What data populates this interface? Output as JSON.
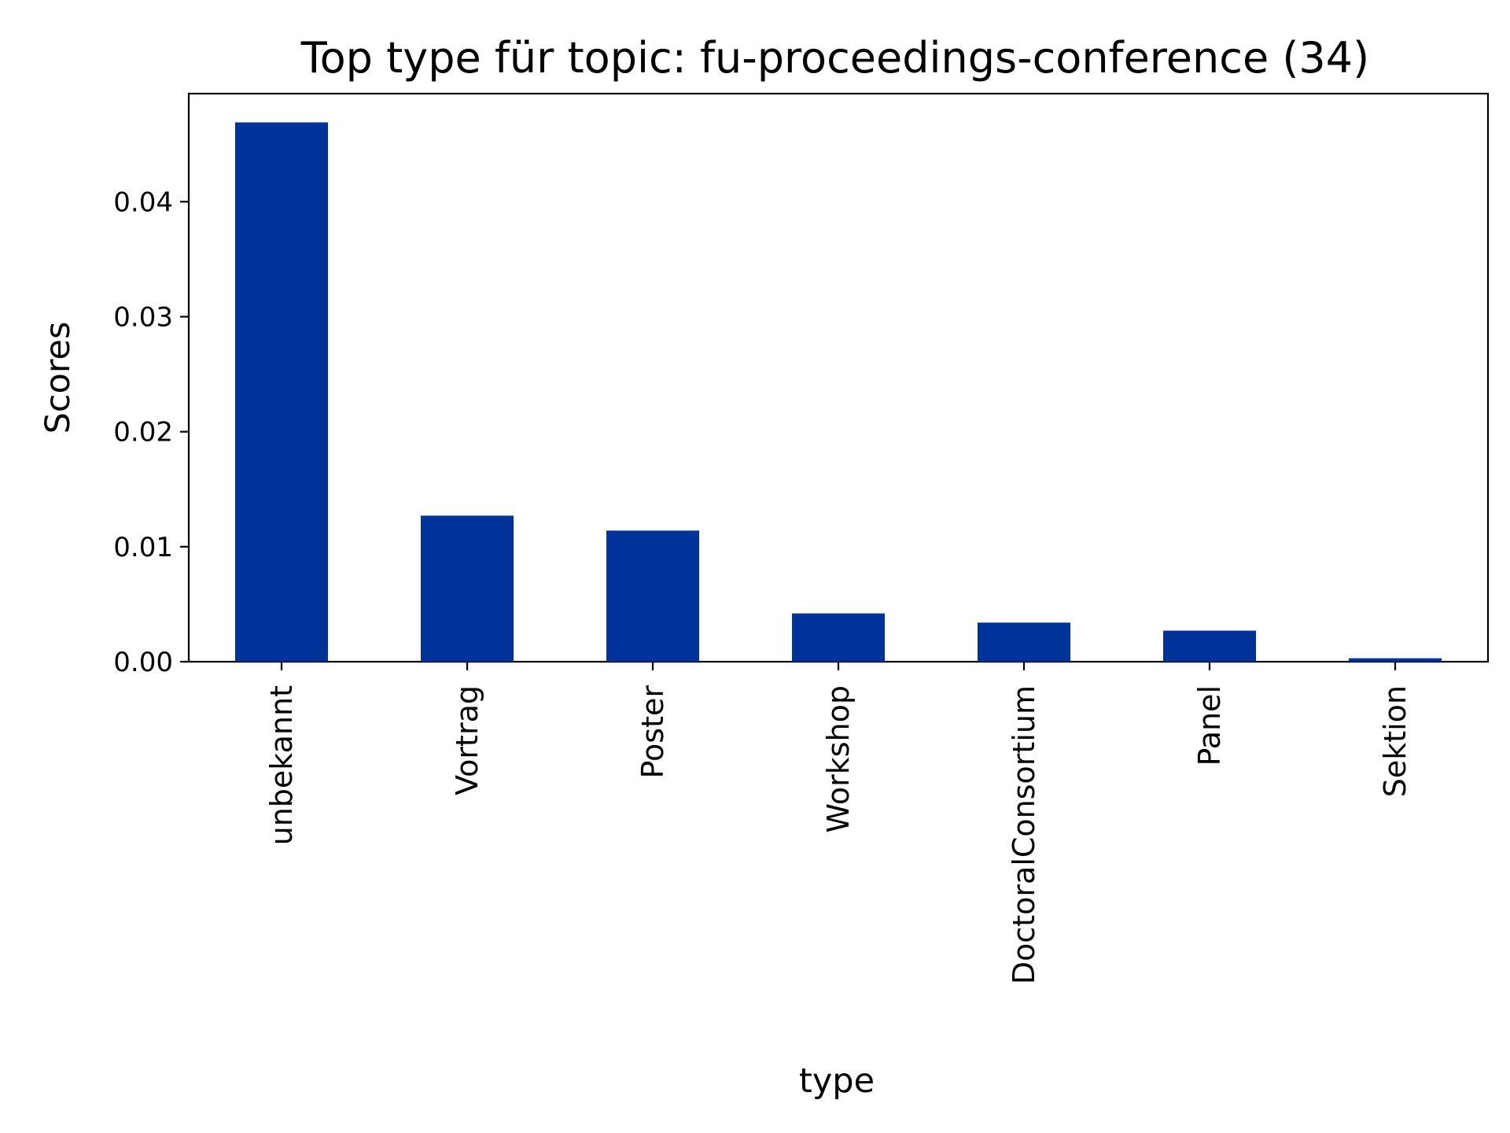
{
  "chart_data": {
    "type": "bar",
    "title": "Top type für topic: fu-proceedings-conference (34)",
    "xlabel": "type",
    "ylabel": "Scores",
    "categories": [
      "unbekannt",
      "Vortrag",
      "Poster",
      "Workshop",
      "DoctoralConsortium",
      "Panel",
      "Sektion"
    ],
    "values": [
      0.0469,
      0.0127,
      0.0114,
      0.0042,
      0.0034,
      0.0027,
      0.0003
    ],
    "ylim": [
      0,
      0.0494
    ],
    "yticks": [
      0.0,
      0.01,
      0.02,
      0.03,
      0.04
    ],
    "ytick_labels": [
      "0.00",
      "0.01",
      "0.02",
      "0.03",
      "0.04"
    ],
    "grid": false,
    "legend": false,
    "bar_color": "#003399"
  }
}
